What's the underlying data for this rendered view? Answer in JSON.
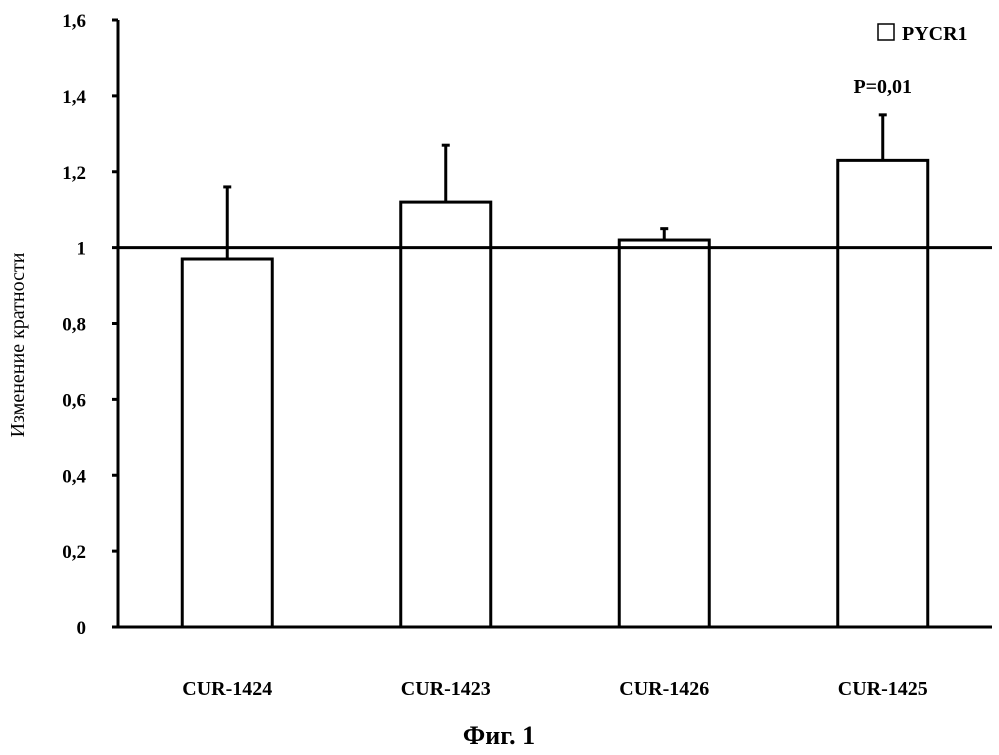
{
  "chart_data": {
    "type": "bar",
    "categories": [
      "CUR-1424",
      "CUR-1423",
      "CUR-1426",
      "CUR-1425"
    ],
    "series": [
      {
        "name": "PYCR1",
        "values": [
          0.97,
          1.12,
          1.02,
          1.23
        ],
        "error_upper": [
          1.16,
          1.27,
          1.05,
          1.35
        ]
      }
    ],
    "ylabel": "Изменение кратности",
    "ylim": [
      0,
      1.6
    ],
    "yticks": [
      0,
      0.2,
      0.4,
      0.6,
      0.8,
      1,
      1.2,
      1.4,
      1.6
    ],
    "ytick_labels": [
      "0",
      "0,2",
      "0,4",
      "0,6",
      "0,8",
      "1",
      "1,2",
      "1,4",
      "1,6"
    ],
    "reference_line": 1,
    "annotations": [
      {
        "category": "CUR-1425",
        "text": "P=0,01"
      }
    ],
    "legend": {
      "position": "top-right",
      "label": "PYCR1",
      "marker": "□"
    },
    "grid": false,
    "colors": {
      "bar_fill": "#ffffff",
      "bar_stroke": "#000000",
      "axis": "#000000"
    }
  },
  "caption": "Фиг. 1"
}
